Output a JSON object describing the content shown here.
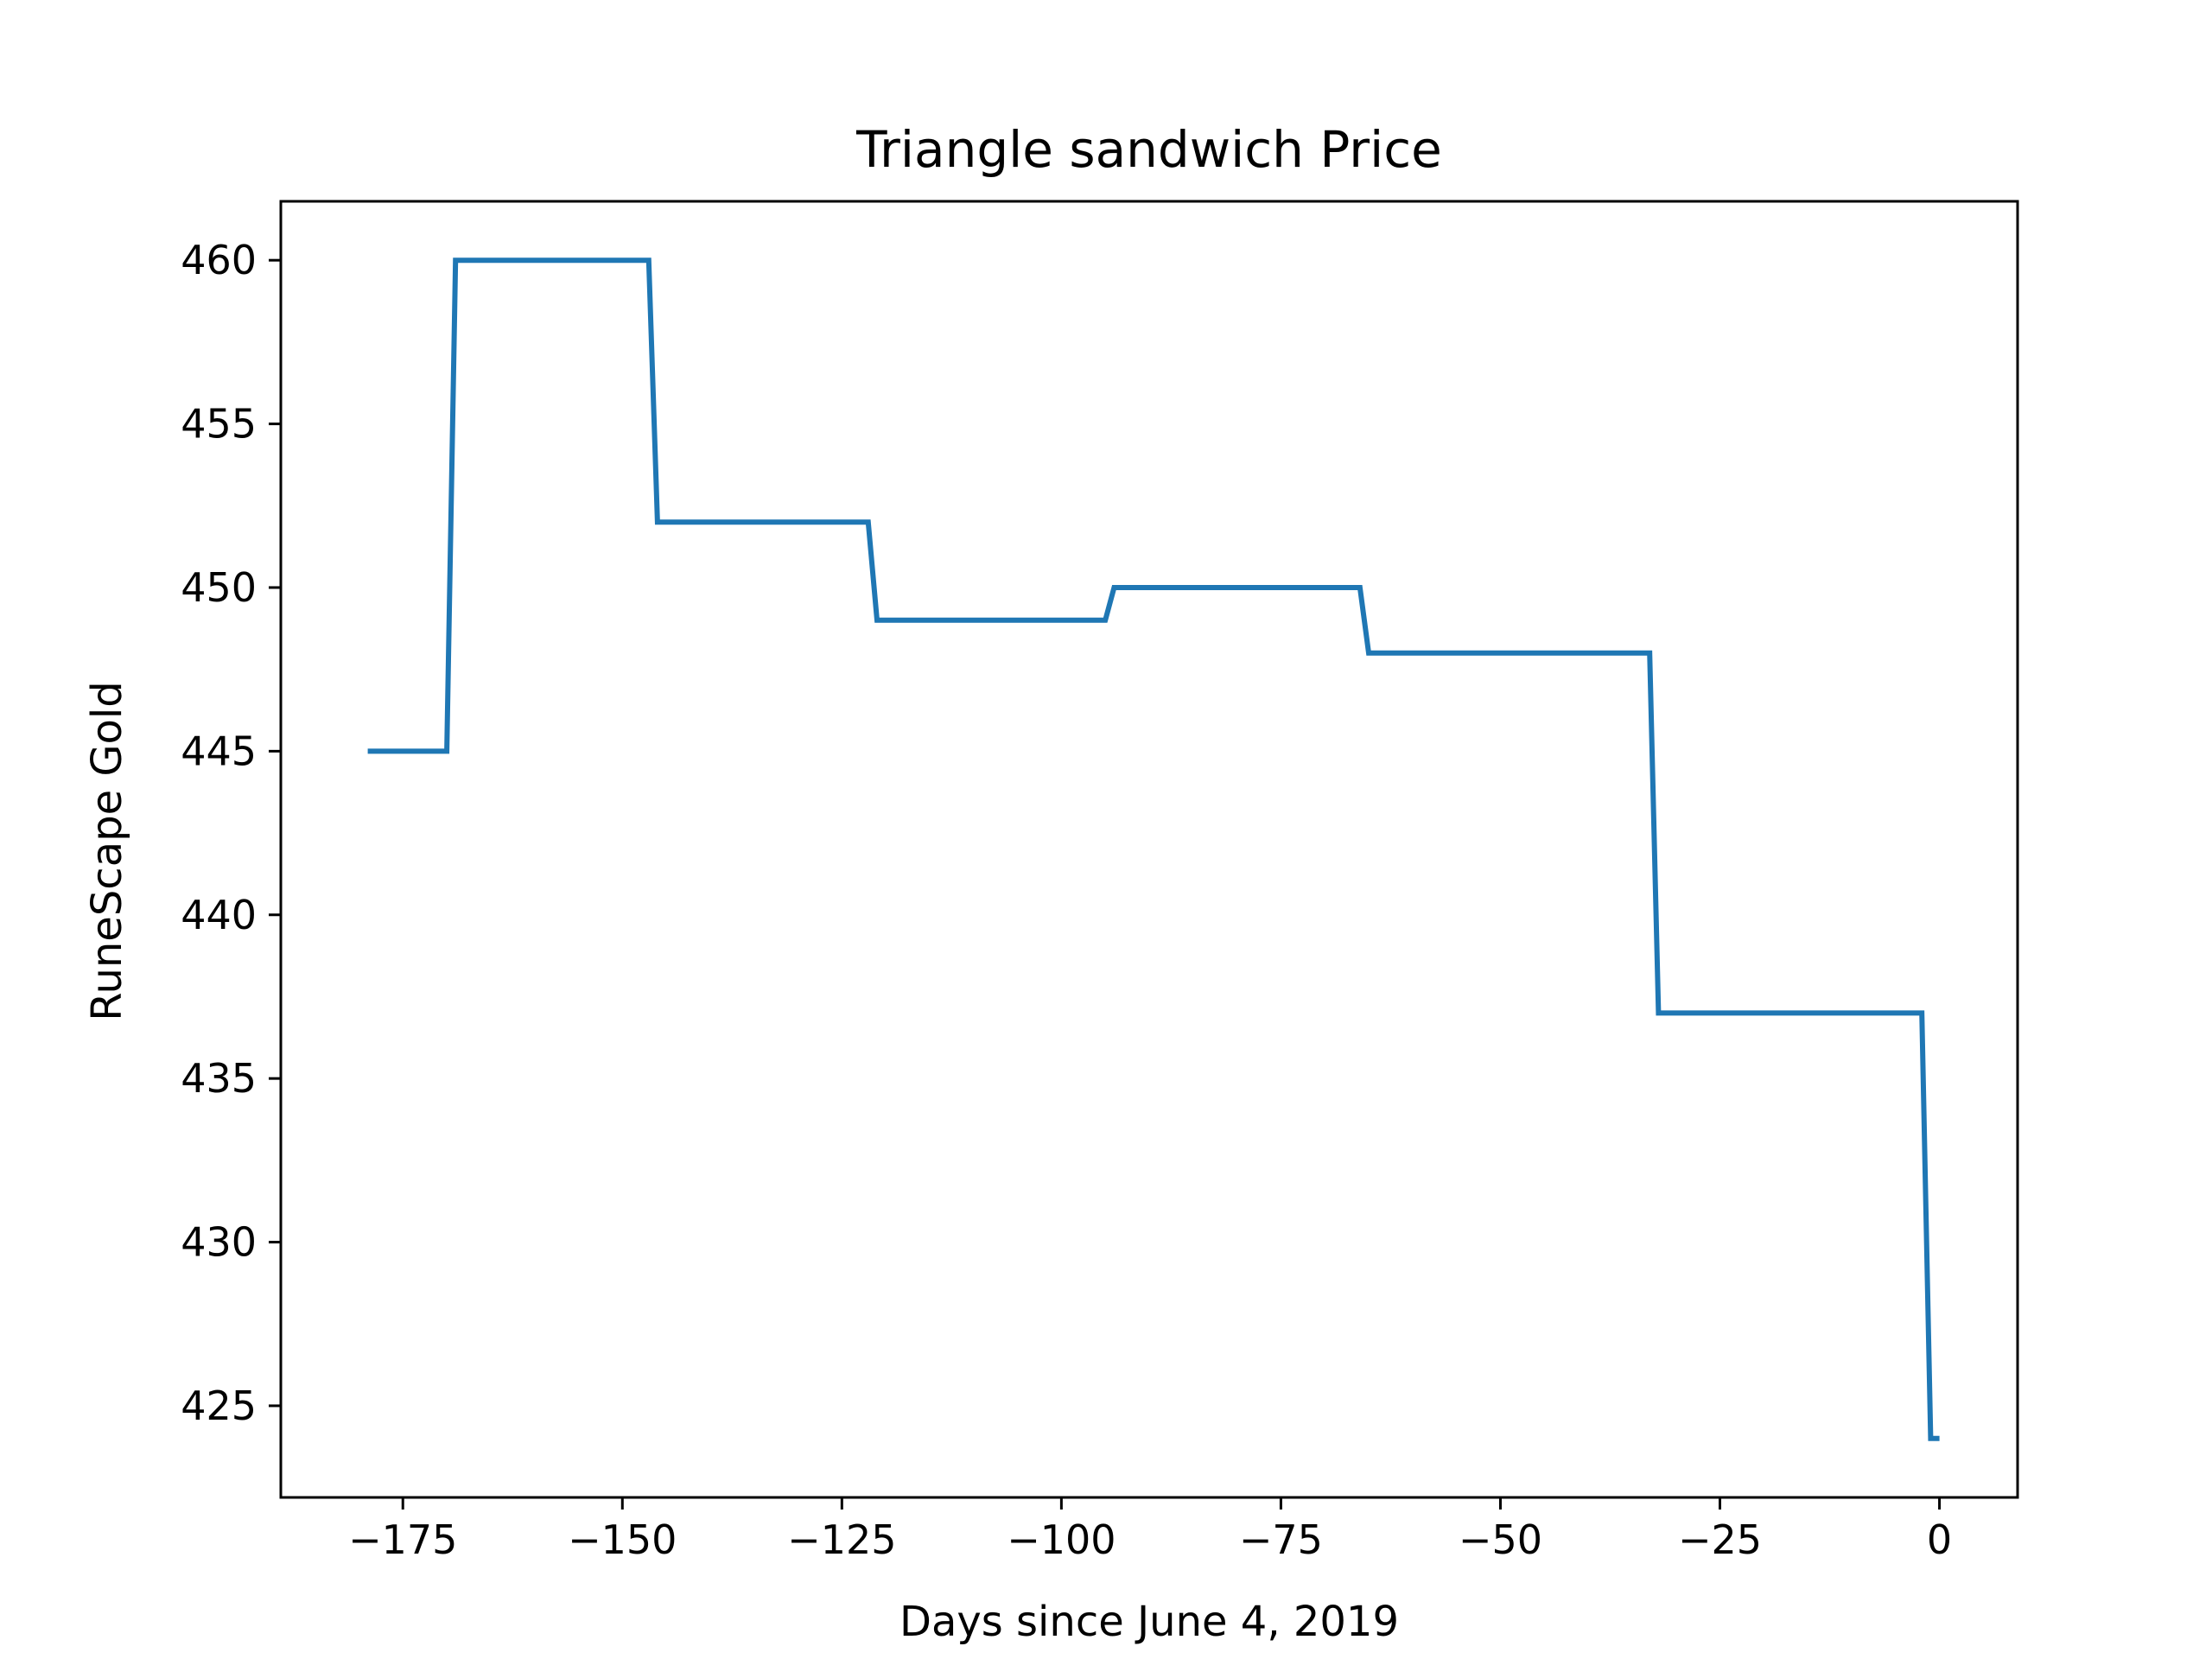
{
  "chart_data": {
    "type": "line",
    "title": "Triangle sandwich Price",
    "xlabel": "Days since June 4, 2019",
    "ylabel": "RuneScape Gold",
    "xlim": [
      -188.9,
      8.9
    ],
    "ylim": [
      422.2,
      461.8
    ],
    "x_ticks": [
      -175,
      -150,
      -125,
      -100,
      -75,
      -50,
      -25,
      0
    ],
    "x_tick_labels": [
      "−175",
      "−150",
      "−125",
      "−100",
      "−75",
      "−50",
      "−25",
      "0"
    ],
    "y_ticks": [
      425,
      430,
      435,
      440,
      445,
      450,
      455,
      460
    ],
    "y_tick_labels": [
      "425",
      "430",
      "435",
      "440",
      "445",
      "450",
      "455",
      "460"
    ],
    "grid": false,
    "legend": "none",
    "series": [
      {
        "color": "#1f77b4",
        "x": [
          -179,
          -170,
          -169,
          -147,
          -146,
          -122,
          -121,
          -95,
          -94,
          -66,
          -65,
          -33,
          -32,
          -2,
          -1,
          0
        ],
        "y": [
          445,
          445,
          460,
          460,
          452,
          452,
          449,
          449,
          450,
          450,
          448,
          448,
          437,
          437,
          424,
          424
        ]
      }
    ]
  }
}
